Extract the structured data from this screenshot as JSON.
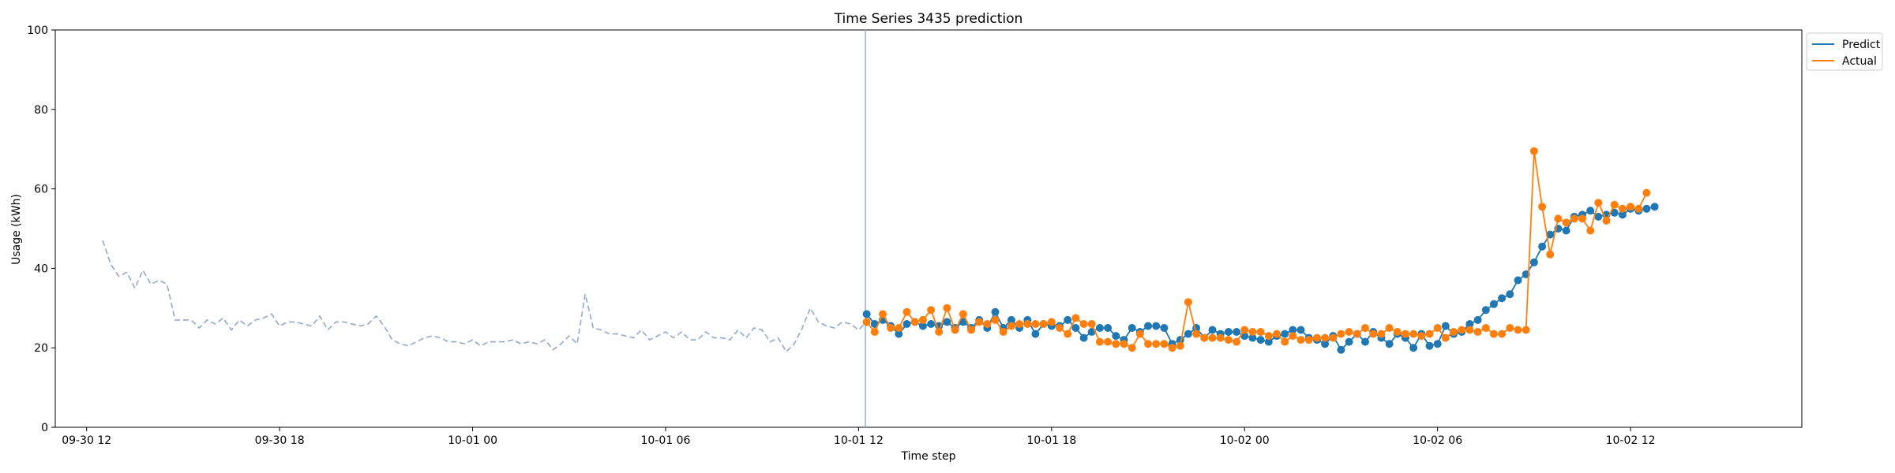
{
  "chart_data": {
    "type": "line",
    "title": "Time Series 3435 prediction",
    "xlabel": "Time step",
    "ylabel": "Usage (kWh)",
    "ylim": [
      0,
      100
    ],
    "yticks": [
      0,
      20,
      40,
      60,
      80,
      100
    ],
    "xticks": [
      {
        "label": "09-30 12",
        "t": 0
      },
      {
        "label": "09-30 18",
        "t": 24
      },
      {
        "label": "10-01 00",
        "t": 48
      },
      {
        "label": "10-01 06",
        "t": 72
      },
      {
        "label": "10-01 12",
        "t": 96
      },
      {
        "label": "10-01 18",
        "t": 120
      },
      {
        "label": "10-02 00",
        "t": 144
      },
      {
        "label": "10-02 06",
        "t": 168
      },
      {
        "label": "10-02 12",
        "t": 192
      }
    ],
    "xlim": [
      -3.9,
      213.3
    ],
    "time_step": "15 minutes",
    "grid": false,
    "legend_position": "outside-right-top",
    "forecast_start_t": 97,
    "history": {
      "t_start": 2,
      "color": "#8fa9cc",
      "style": "dashed",
      "values": [
        47.0,
        41.0,
        38.0,
        39.0,
        35.0,
        39.5,
        36.0,
        37.0,
        36.0,
        27.0,
        27.0,
        27.0,
        25.0,
        27.0,
        26.0,
        27.5,
        24.5,
        27.0,
        25.5,
        27.0,
        27.5,
        28.5,
        25.5,
        26.5,
        26.5,
        26.0,
        25.5,
        28.0,
        24.5,
        26.5,
        26.5,
        26.0,
        25.5,
        26.0,
        28.0,
        25.5,
        22.0,
        21.0,
        20.5,
        21.5,
        22.5,
        23.0,
        22.5,
        21.5,
        21.5,
        21.0,
        22.0,
        20.5,
        21.5,
        21.5,
        21.5,
        22.0,
        21.0,
        21.5,
        21.0,
        22.0,
        19.5,
        21.0,
        23.0,
        21.0,
        33.5,
        25.0,
        24.5,
        23.5,
        23.5,
        23.0,
        22.5,
        24.5,
        22.0,
        23.0,
        24.0,
        22.5,
        24.0,
        22.0,
        22.0,
        24.0,
        22.5,
        22.5,
        22.0,
        24.5,
        22.5,
        25.0,
        24.5,
        21.5,
        22.5,
        19.0,
        21.0,
        25.0,
        30.0,
        26.5,
        25.5,
        25.0,
        26.5,
        26.0,
        24.5,
        26.5
      ]
    },
    "series": [
      {
        "name": "Predict",
        "color": "#1f77b4",
        "t_start": 97,
        "values": [
          28.5,
          26.0,
          27.0,
          25.5,
          23.5,
          26.0,
          26.5,
          25.5,
          26.0,
          25.5,
          26.5,
          25.0,
          26.5,
          25.0,
          27.0,
          25.0,
          29.0,
          25.0,
          27.0,
          25.0,
          27.0,
          23.5,
          26.0,
          25.5,
          25.5,
          27.0,
          25.0,
          22.5,
          24.0,
          25.0,
          25.0,
          23.0,
          22.0,
          25.0,
          24.0,
          25.5,
          25.5,
          25.0,
          21.0,
          22.0,
          23.5,
          25.0,
          22.5,
          24.5,
          23.5,
          24.0,
          24.0,
          23.0,
          22.5,
          22.0,
          21.5,
          23.0,
          23.5,
          24.5,
          24.5,
          22.5,
          22.0,
          21.0,
          23.0,
          19.5,
          21.5,
          23.5,
          21.5,
          24.0,
          22.5,
          21.0,
          23.5,
          22.5,
          20.0,
          23.5,
          20.5,
          21.0,
          25.5,
          23.5,
          24.0,
          26.0,
          27.0,
          29.5,
          31.0,
          32.5,
          33.5,
          37.0,
          38.5,
          41.5,
          45.5,
          48.5,
          50.0,
          49.5,
          53.0,
          53.5,
          54.5,
          53.0,
          53.5,
          54.0,
          53.5,
          55.0,
          54.5,
          55.0,
          55.5
        ]
      },
      {
        "name": "Actual",
        "color": "#ff7f0e",
        "t_start": 97,
        "values": [
          26.5,
          24.0,
          28.5,
          25.0,
          25.0,
          29.0,
          26.5,
          27.0,
          29.5,
          24.0,
          30.0,
          24.5,
          28.5,
          24.5,
          26.5,
          26.0,
          27.0,
          24.0,
          25.5,
          26.0,
          26.0,
          26.0,
          26.0,
          26.5,
          25.0,
          23.5,
          27.5,
          26.0,
          26.0,
          21.5,
          21.5,
          21.0,
          21.0,
          20.0,
          23.5,
          21.0,
          21.0,
          21.0,
          20.0,
          20.5,
          31.5,
          23.5,
          22.5,
          22.5,
          22.5,
          22.0,
          21.5,
          24.5,
          24.0,
          24.0,
          23.0,
          23.5,
          21.5,
          23.0,
          22.0,
          22.0,
          22.5,
          22.5,
          22.5,
          23.5,
          24.0,
          23.5,
          25.0,
          23.5,
          23.5,
          25.0,
          24.0,
          23.5,
          23.5,
          23.0,
          23.5,
          25.0,
          22.5,
          24.0,
          24.5,
          24.5,
          24.0,
          25.0,
          23.5,
          23.5,
          25.0,
          24.5,
          24.5,
          69.5,
          55.5,
          43.5,
          52.5,
          51.5,
          52.5,
          52.5,
          49.5,
          56.5,
          52.0,
          56.0,
          55.0,
          55.5,
          55.0,
          59.0
        ]
      }
    ]
  }
}
